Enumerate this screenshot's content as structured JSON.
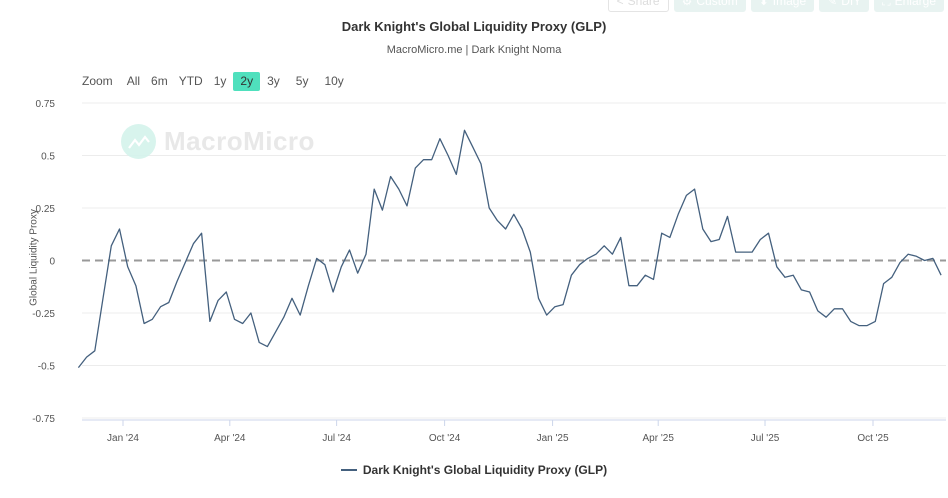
{
  "toolbar": {
    "share": "Share",
    "custom": "Custom",
    "image": "Image",
    "diy": "DIY",
    "enlarge": "Enlarge"
  },
  "range_selector": {
    "label": "Zoom",
    "options": [
      "All",
      "6m",
      "YTD",
      "1y",
      "2y",
      "3y",
      "5y",
      "10y"
    ],
    "selected": "2y"
  },
  "watermark": "MacroMicro",
  "colors": {
    "series": "#44607e",
    "zero_line": "#999999",
    "selected_range": "#4fe0bd"
  },
  "chart_data": {
    "type": "line",
    "title": "Dark Knight's Global Liquidity Proxy (GLP)",
    "subtitle": "MacroMicro.me | Dark Knight Noma",
    "xlabel": "",
    "ylabel": "Global Liquidity Proxy",
    "ylim": [
      -0.75,
      0.75
    ],
    "yticks": [
      0.75,
      0.5,
      0.25,
      0,
      -0.25,
      -0.5,
      -0.75
    ],
    "ytick_labels": [
      "0.75",
      "0.5",
      "0.25",
      "0",
      "-0.25",
      "-0.5",
      "-0.75"
    ],
    "xticks": [
      {
        "date": "2024-01-01",
        "label": "Jan '24"
      },
      {
        "date": "2024-04-01",
        "label": "Apr '24"
      },
      {
        "date": "2024-07-01",
        "label": "Jul '24"
      },
      {
        "date": "2024-10-01",
        "label": "Oct '24"
      },
      {
        "date": "2025-01-01",
        "label": "Jan '25"
      },
      {
        "date": "2025-04-01",
        "label": "Apr '25"
      },
      {
        "date": "2025-07-01",
        "label": "Jul '25"
      },
      {
        "date": "2025-10-01",
        "label": "Oct '25"
      }
    ],
    "grid": true,
    "reference_line": 0,
    "legend_position": "bottom",
    "series": [
      {
        "name": "Dark Knight's Global Liquidity Proxy (GLP)",
        "x": [
          "2023-11-24",
          "2023-12-01",
          "2023-12-08",
          "2023-12-15",
          "2023-12-22",
          "2023-12-29",
          "2024-01-05",
          "2024-01-12",
          "2024-01-19",
          "2024-01-26",
          "2024-02-02",
          "2024-02-09",
          "2024-02-16",
          "2024-02-23",
          "2024-03-01",
          "2024-03-08",
          "2024-03-15",
          "2024-03-22",
          "2024-03-29",
          "2024-04-05",
          "2024-04-12",
          "2024-04-19",
          "2024-04-26",
          "2024-05-03",
          "2024-05-10",
          "2024-05-17",
          "2024-05-24",
          "2024-05-31",
          "2024-06-07",
          "2024-06-14",
          "2024-06-21",
          "2024-06-28",
          "2024-07-05",
          "2024-07-12",
          "2024-07-19",
          "2024-07-26",
          "2024-08-02",
          "2024-08-09",
          "2024-08-16",
          "2024-08-23",
          "2024-08-30",
          "2024-09-06",
          "2024-09-13",
          "2024-09-20",
          "2024-09-27",
          "2024-10-04",
          "2024-10-11",
          "2024-10-18",
          "2024-10-25",
          "2024-11-01",
          "2024-11-08",
          "2024-11-15",
          "2024-11-22",
          "2024-11-29",
          "2024-12-06",
          "2024-12-13",
          "2024-12-20",
          "2024-12-27",
          "2025-01-03",
          "2025-01-10",
          "2025-01-17",
          "2025-01-24",
          "2025-01-31",
          "2025-02-07",
          "2025-02-14",
          "2025-02-21",
          "2025-02-28",
          "2025-03-07",
          "2025-03-14",
          "2025-03-21",
          "2025-03-28",
          "2025-04-04",
          "2025-04-11",
          "2025-04-18",
          "2025-04-25",
          "2025-05-02",
          "2025-05-09",
          "2025-05-16",
          "2025-05-23",
          "2025-05-30",
          "2025-06-06",
          "2025-06-13",
          "2025-06-20",
          "2025-06-27",
          "2025-07-04",
          "2025-07-11",
          "2025-07-18",
          "2025-07-25",
          "2025-08-01",
          "2025-08-08",
          "2025-08-15",
          "2025-08-22",
          "2025-08-29",
          "2025-09-05",
          "2025-09-12",
          "2025-09-19",
          "2025-09-26",
          "2025-10-03",
          "2025-10-10",
          "2025-10-17",
          "2025-10-24",
          "2025-10-31",
          "2025-11-07",
          "2025-11-14",
          "2025-11-21",
          "2025-11-28"
        ],
        "values": [
          -0.51,
          -0.46,
          -0.43,
          -0.18,
          0.07,
          0.15,
          -0.03,
          -0.12,
          -0.3,
          -0.28,
          -0.22,
          -0.2,
          -0.1,
          -0.01,
          0.08,
          0.13,
          -0.29,
          -0.19,
          -0.15,
          -0.28,
          -0.3,
          -0.25,
          -0.39,
          -0.41,
          -0.34,
          -0.27,
          -0.18,
          -0.26,
          -0.12,
          0.01,
          -0.02,
          -0.15,
          -0.03,
          0.05,
          -0.06,
          0.03,
          0.34,
          0.24,
          0.4,
          0.34,
          0.26,
          0.44,
          0.48,
          0.48,
          0.58,
          0.5,
          0.41,
          0.62,
          0.54,
          0.46,
          0.25,
          0.19,
          0.15,
          0.22,
          0.15,
          0.04,
          -0.18,
          -0.26,
          -0.22,
          -0.21,
          -0.07,
          -0.02,
          0.01,
          0.03,
          0.07,
          0.03,
          0.11,
          -0.12,
          -0.12,
          -0.07,
          -0.09,
          0.13,
          0.11,
          0.22,
          0.31,
          0.34,
          0.15,
          0.09,
          0.1,
          0.21,
          0.04,
          0.04,
          0.04,
          0.1,
          0.13,
          -0.03,
          -0.08,
          -0.07,
          -0.14,
          -0.15,
          -0.24,
          -0.27,
          -0.23,
          -0.23,
          -0.29,
          -0.31,
          -0.31,
          -0.29,
          -0.11,
          -0.08,
          -0.01,
          0.03,
          0.02,
          0.0,
          0.01,
          -0.07
        ]
      }
    ]
  }
}
